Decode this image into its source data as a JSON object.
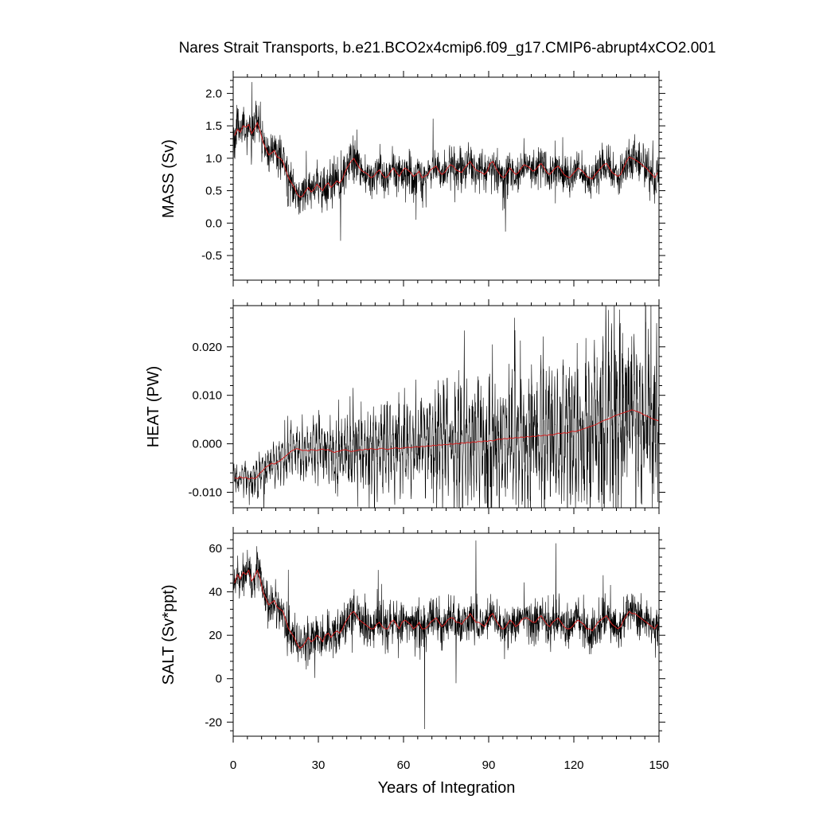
{
  "chart_data": {
    "type": "line",
    "title": "Nares Strait Transports, b.e21.BCO2x4cmip6.f09_g17.CMIP6-abrupt4xCO2.001",
    "xlabel": "Years of Integration",
    "xlim": [
      0,
      150
    ],
    "xticks": [
      0,
      30,
      60,
      90,
      120,
      150
    ],
    "series_colors": {
      "monthly": "#000000",
      "annual_mean": "#d42020"
    },
    "panels": [
      {
        "name": "MASS",
        "ylabel": "MASS (Sv)",
        "ylim": [
          -0.88,
          2.25
        ],
        "yticks": [
          -0.5,
          0.0,
          0.5,
          1.0,
          1.5,
          2.0
        ],
        "ytick_labels": [
          "-0.5",
          "0.0",
          "0.5",
          "1.0",
          "1.5",
          "2.0"
        ],
        "annual_mean": [
          1.35,
          1.45,
          1.4,
          1.5,
          1.48,
          1.52,
          1.38,
          1.45,
          1.55,
          1.42,
          1.25,
          1.15,
          1.05,
          1.08,
          1.12,
          1.02,
          1.0,
          0.95,
          0.82,
          0.7,
          0.62,
          0.55,
          0.45,
          0.4,
          0.42,
          0.5,
          0.55,
          0.48,
          0.52,
          0.6,
          0.55,
          0.5,
          0.58,
          0.62,
          0.55,
          0.6,
          0.65,
          0.62,
          0.68,
          0.8,
          0.88,
          0.95,
          1.0,
          0.92,
          0.85,
          0.8,
          0.78,
          0.75,
          0.7,
          0.72,
          0.78,
          0.82,
          0.75,
          0.7,
          0.72,
          0.8,
          0.85,
          0.78,
          0.72,
          0.8,
          0.85,
          0.82,
          0.78,
          0.72,
          0.75,
          0.8,
          0.7,
          0.72,
          0.75,
          0.82,
          0.85,
          0.88,
          0.8,
          0.75,
          0.78,
          0.85,
          0.9,
          0.88,
          0.82,
          0.8,
          0.78,
          0.85,
          0.9,
          0.95,
          0.88,
          0.82,
          0.8,
          0.78,
          0.75,
          0.8,
          0.92,
          0.95,
          0.85,
          0.78,
          0.72,
          0.7,
          0.78,
          0.85,
          0.8,
          0.75,
          0.78,
          0.85,
          0.9,
          0.88,
          0.85,
          0.8,
          0.82,
          0.88,
          0.92,
          0.85,
          0.78,
          0.75,
          0.8,
          0.85,
          0.88,
          0.82,
          0.75,
          0.72,
          0.7,
          0.75,
          0.8,
          0.85,
          0.82,
          0.78,
          0.72,
          0.7,
          0.68,
          0.75,
          0.8,
          0.85,
          0.9,
          0.92,
          0.85,
          0.78,
          0.75,
          0.72,
          0.75,
          0.85,
          0.95,
          1.02,
          1.0,
          0.98,
          0.95,
          0.92,
          0.88,
          0.85,
          0.8,
          0.75,
          0.7,
          0.78
        ]
      },
      {
        "name": "HEAT",
        "ylabel": "HEAT (PW)",
        "ylim": [
          -0.0132,
          0.0285
        ],
        "yticks": [
          -0.01,
          0.0,
          0.01,
          0.02
        ],
        "ytick_labels": [
          "-0.010",
          "0.000",
          "0.010",
          "0.020"
        ],
        "annual_mean": [
          -0.007,
          -0.0072,
          -0.0068,
          -0.0071,
          -0.0069,
          -0.0073,
          -0.007,
          -0.0072,
          -0.0068,
          -0.006,
          -0.0055,
          -0.0048,
          -0.0045,
          -0.004,
          -0.0042,
          -0.0038,
          -0.0035,
          -0.003,
          -0.0025,
          -0.002,
          -0.0015,
          -0.0012,
          -0.001,
          -0.0012,
          -0.0014,
          -0.0013,
          -0.0015,
          -0.0012,
          -0.0013,
          -0.0014,
          -0.0012,
          -0.0011,
          -0.0013,
          -0.0012,
          -0.0015,
          -0.0018,
          -0.0016,
          -0.0015,
          -0.0013,
          -0.0012,
          -0.0014,
          -0.0016,
          -0.0015,
          -0.0014,
          -0.0012,
          -0.0013,
          -0.0011,
          -0.0012,
          -0.001,
          -0.0011,
          -0.0012,
          -0.001,
          -0.0009,
          -0.0011,
          -0.0012,
          -0.001,
          -0.0009,
          -0.0008,
          -0.001,
          -0.0009,
          -0.0008,
          -0.0007,
          -0.0008,
          -0.0007,
          -0.0006,
          -0.0007,
          -0.0005,
          -0.0006,
          -0.0004,
          -0.0005,
          -0.0003,
          -0.0004,
          -0.0002,
          -0.0003,
          -0.0001,
          -0.0002,
          0.0,
          -0.0001,
          0.0001,
          0.0,
          0.0002,
          0.0001,
          0.0003,
          0.0002,
          0.0004,
          0.0003,
          0.0005,
          0.0004,
          0.0006,
          0.0005,
          0.0007,
          0.0006,
          0.0008,
          0.001,
          0.0009,
          0.0011,
          0.001,
          0.0012,
          0.0011,
          0.0013,
          0.0012,
          0.0014,
          0.0013,
          0.0015,
          0.0014,
          0.0016,
          0.0015,
          0.0017,
          0.0016,
          0.0018,
          0.0017,
          0.0019,
          0.0018,
          0.002,
          0.0022,
          0.0021,
          0.0023,
          0.0022,
          0.0024,
          0.0026,
          0.0025,
          0.0027,
          0.0029,
          0.0031,
          0.0033,
          0.0035,
          0.0037,
          0.0039,
          0.0042,
          0.0045,
          0.0048,
          0.005,
          0.0052,
          0.0055,
          0.0058,
          0.006,
          0.0062,
          0.0064,
          0.0066,
          0.0068,
          0.007,
          0.0068,
          0.0066,
          0.0064,
          0.006,
          0.0058,
          0.0055,
          0.0052,
          0.005,
          0.0048,
          0.0046,
          0.0045
        ]
      },
      {
        "name": "SALT",
        "ylabel": "SALT (Sv*ppt)",
        "ylim": [
          -26.5,
          67
        ],
        "yticks": [
          -20,
          0,
          20,
          40,
          60
        ],
        "ytick_labels": [
          "-20",
          "0",
          "20",
          "40",
          "60"
        ],
        "annual_mean": [
          44,
          48,
          46,
          49,
          48,
          50,
          45,
          47,
          50,
          46,
          40,
          37,
          34,
          35,
          36,
          33,
          32,
          31,
          27,
          23,
          21,
          19,
          16,
          14,
          15,
          17,
          19,
          17,
          18,
          20,
          19,
          17,
          20,
          21,
          19,
          21,
          22,
          21,
          23,
          26,
          28,
          30,
          31,
          29,
          27,
          26,
          25,
          24,
          23,
          23,
          25,
          26,
          24,
          23,
          23,
          26,
          27,
          25,
          23,
          26,
          27,
          26,
          25,
          23,
          24,
          26,
          23,
          23,
          24,
          26,
          27,
          28,
          26,
          24,
          25,
          27,
          28,
          28,
          26,
          26,
          25,
          27,
          28,
          30,
          28,
          26,
          26,
          25,
          24,
          26,
          29,
          30,
          27,
          25,
          23,
          23,
          25,
          27,
          26,
          24,
          25,
          27,
          28,
          28,
          27,
          26,
          26,
          28,
          29,
          27,
          25,
          24,
          26,
          27,
          28,
          26,
          24,
          23,
          23,
          24,
          26,
          27,
          26,
          25,
          23,
          23,
          22,
          24,
          26,
          27,
          28,
          29,
          27,
          25,
          24,
          23,
          24,
          27,
          29,
          31,
          30,
          30,
          29,
          28,
          27,
          26,
          25,
          24,
          23,
          25
        ]
      }
    ]
  }
}
